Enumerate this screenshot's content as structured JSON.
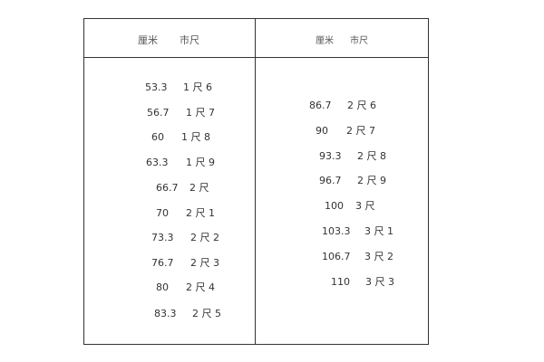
{
  "table": {
    "headers": [
      {
        "cm": "厘米",
        "chi": "市尺"
      },
      {
        "cm": "厘米",
        "chi": "市尺"
      }
    ],
    "left_column": [
      {
        "cm": "53.3",
        "chi": "1 尺 6"
      },
      {
        "cm": "56.7",
        "chi": "1 尺 7"
      },
      {
        "cm": "60",
        "chi": "1 尺 8"
      },
      {
        "cm": "63.3",
        "chi": "1 尺 9"
      },
      {
        "cm": "66.7",
        "chi": "2 尺"
      },
      {
        "cm": "70",
        "chi": "2 尺 1"
      },
      {
        "cm": "73.3",
        "chi": "2 尺 2"
      },
      {
        "cm": "76.7",
        "chi": "2 尺 3"
      },
      {
        "cm": "80",
        "chi": "2 尺 4"
      },
      {
        "cm": "83.3",
        "chi": "2 尺 5"
      }
    ],
    "right_column": [
      {
        "cm": "86.7",
        "chi": "2 尺 6"
      },
      {
        "cm": "90",
        "chi": "2 尺 7"
      },
      {
        "cm": "93.3",
        "chi": "2 尺 8"
      },
      {
        "cm": "96.7",
        "chi": "2 尺 9"
      },
      {
        "cm": "100",
        "chi": "3 尺"
      },
      {
        "cm": "103.3",
        "chi": "3 尺 1"
      },
      {
        "cm": "106.7",
        "chi": "3 尺 2"
      },
      {
        "cm": "110",
        "chi": "3 尺 3"
      }
    ]
  }
}
